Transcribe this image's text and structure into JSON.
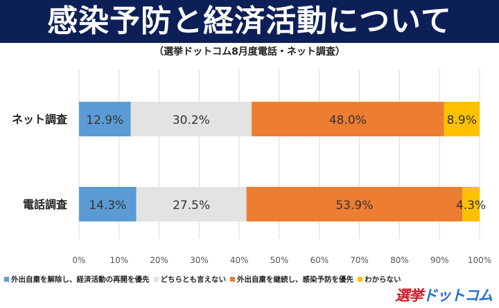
{
  "header": {
    "title": "感染予防と経済活動について",
    "subtitle": "（選挙ドットコム8月度電話・ネット調査）"
  },
  "chart_data": {
    "type": "bar",
    "orientation": "horizontal",
    "stacked": "percent",
    "categories": [
      "ネット調査",
      "電話調査"
    ],
    "series": [
      {
        "name": "外出自粛を解除し、経済活動の再開を優先",
        "color": "#5b9bd5",
        "values": [
          12.9,
          14.3
        ],
        "labels": [
          "12.9%",
          "14.3%"
        ]
      },
      {
        "name": "どちらとも言えない",
        "color": "#e3e3e3",
        "values": [
          30.2,
          27.5
        ],
        "labels": [
          "30.2%",
          "27.5%"
        ]
      },
      {
        "name": "外出自粛を継続し、感染予防を優先",
        "color": "#ed7d31",
        "values": [
          48.0,
          53.9
        ],
        "labels": [
          "48.0%",
          "53.9%"
        ]
      },
      {
        "name": "わからない",
        "color": "#ffc000",
        "values": [
          8.9,
          4.3
        ],
        "labels": [
          "8.9%",
          "4.3%"
        ]
      }
    ],
    "x_ticks": [
      "0%",
      "10%",
      "20%",
      "30%",
      "40%",
      "50%",
      "60%",
      "70%",
      "80%",
      "90%",
      "100%"
    ],
    "xlim": [
      0,
      100
    ],
    "grid": true,
    "legend": "bottom"
  },
  "logo": {
    "part1": "選挙",
    "part2": "ドットコム"
  }
}
